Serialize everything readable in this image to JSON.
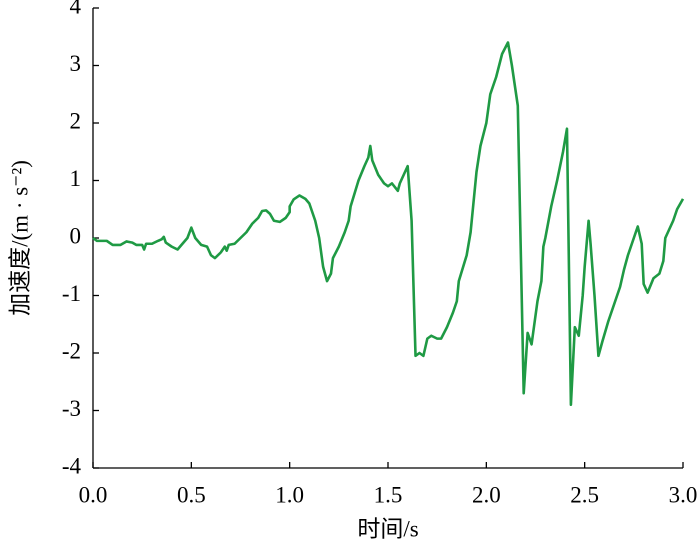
{
  "chart_data": {
    "type": "line",
    "xlabel": "时间/s",
    "ylabel": "加速度/(m · s⁻²)",
    "xlim": [
      0,
      3
    ],
    "ylim": [
      -4,
      4
    ],
    "xticks": [
      {
        "value": 0,
        "label": "0.0"
      },
      0.5,
      {
        "value": 1,
        "label": "1.0"
      },
      1.5,
      {
        "value": 2,
        "label": "2.0"
      },
      2.5,
      {
        "value": 3,
        "label": "3.0"
      }
    ],
    "yticks": [
      -4,
      -3,
      -2,
      -1,
      0,
      1,
      2,
      3,
      4
    ],
    "series": [
      {
        "color": "#1f9a44",
        "x": [
          0,
          0.02,
          0.07,
          0.1,
          0.14,
          0.17,
          0.2,
          0.22,
          0.25,
          0.26,
          0.27,
          0.3,
          0.33,
          0.35,
          0.36,
          0.37,
          0.4,
          0.43,
          0.45,
          0.48,
          0.5,
          0.52,
          0.55,
          0.58,
          0.6,
          0.62,
          0.65,
          0.67,
          0.68,
          0.69,
          0.72,
          0.75,
          0.78,
          0.81,
          0.84,
          0.86,
          0.88,
          0.9,
          0.92,
          0.95,
          0.98,
          1.0,
          1.0,
          1.02,
          1.05,
          1.08,
          1.1,
          1.13,
          1.15,
          1.17,
          1.19,
          1.21,
          1.22,
          1.25,
          1.28,
          1.3,
          1.31,
          1.35,
          1.38,
          1.4,
          1.41,
          1.42,
          1.45,
          1.48,
          1.5,
          1.52,
          1.55,
          1.56,
          1.58,
          1.6,
          1.62,
          1.64,
          1.66,
          1.68,
          1.7,
          1.72,
          1.75,
          1.77,
          1.8,
          1.83,
          1.85,
          1.86,
          1.9,
          1.92,
          1.95,
          1.97,
          2.0,
          2.02,
          2.05,
          2.08,
          2.11,
          2.13,
          2.16,
          2.19,
          2.21,
          2.23,
          2.26,
          2.28,
          2.29,
          2.3,
          2.33,
          2.36,
          2.39,
          2.41,
          2.43,
          2.45,
          2.47,
          2.49,
          2.5,
          2.52,
          2.53,
          2.55,
          2.57,
          2.59,
          2.62,
          2.65,
          2.68,
          2.7,
          2.72,
          2.75,
          2.77,
          2.79,
          2.8,
          2.82,
          2.85,
          2.88,
          2.9,
          2.91,
          2.95,
          2.97,
          3.0
        ],
        "values": [
          0,
          -0.05,
          -0.05,
          -0.12,
          -0.12,
          -0.06,
          -0.08,
          -0.12,
          -0.12,
          -0.2,
          -0.1,
          -0.1,
          -0.05,
          -0.02,
          0.02,
          -0.08,
          -0.15,
          -0.2,
          -0.12,
          0.0,
          0.18,
          0.0,
          -0.12,
          -0.15,
          -0.3,
          -0.35,
          -0.25,
          -0.15,
          -0.22,
          -0.12,
          -0.1,
          0.0,
          0.1,
          0.25,
          0.35,
          0.47,
          0.48,
          0.42,
          0.3,
          0.28,
          0.35,
          0.45,
          0.55,
          0.67,
          0.74,
          0.68,
          0.6,
          0.3,
          0.0,
          -0.5,
          -0.75,
          -0.62,
          -0.35,
          -0.15,
          0.1,
          0.3,
          0.55,
          1.0,
          1.25,
          1.4,
          1.6,
          1.35,
          1.1,
          0.95,
          0.9,
          0.95,
          0.82,
          0.95,
          1.1,
          1.25,
          0.3,
          -2.05,
          -2.0,
          -2.05,
          -1.75,
          -1.7,
          -1.75,
          -1.75,
          -1.55,
          -1.3,
          -1.1,
          -0.75,
          -0.3,
          0.1,
          1.15,
          1.6,
          2.0,
          2.5,
          2.8,
          3.2,
          3.4,
          3.0,
          2.3,
          -2.7,
          -1.65,
          -1.85,
          -1.1,
          -0.75,
          -0.15,
          0.0,
          0.55,
          1.0,
          1.5,
          1.9,
          -2.9,
          -1.55,
          -1.7,
          -1.0,
          -0.5,
          0.3,
          -0.1,
          -1.0,
          -2.05,
          -1.8,
          -1.45,
          -1.15,
          -0.85,
          -0.55,
          -0.3,
          0.0,
          0.2,
          -0.1,
          -0.8,
          -0.95,
          -0.7,
          -0.62,
          -0.4,
          0.0,
          0.3,
          0.5,
          0.68
        ]
      }
    ]
  }
}
